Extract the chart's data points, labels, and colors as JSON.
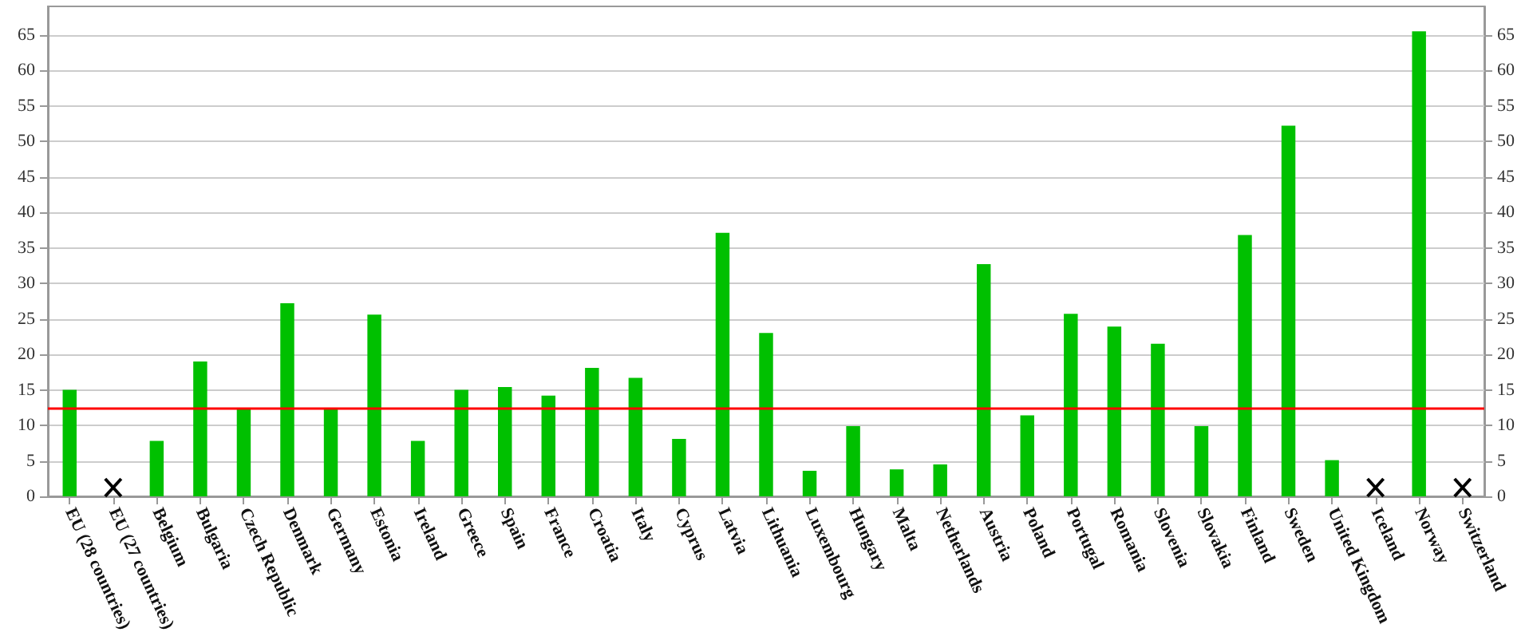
{
  "chart_data": {
    "type": "bar",
    "categories": [
      "EU (28 countries)",
      "EU (27 countries)",
      "Belgium",
      "Bulgaria",
      "Czech Republic",
      "Denmark",
      "Germany",
      "Estonia",
      "Ireland",
      "Greece",
      "Spain",
      "France",
      "Croatia",
      "Italy",
      "Cyprus",
      "Latvia",
      "Lithuania",
      "Luxembourg",
      "Hungary",
      "Malta",
      "Netherlands",
      "Austria",
      "Poland",
      "Portugal",
      "Romania",
      "Slovenia",
      "Slovakia",
      "Finland",
      "Sweden",
      "United Kingdom",
      "Iceland",
      "Norway",
      "Switzerland"
    ],
    "values": [
      15.0,
      null,
      7.8,
      19.0,
      12.4,
      27.2,
      12.4,
      25.6,
      7.8,
      15.0,
      15.4,
      14.2,
      18.1,
      16.7,
      8.1,
      37.1,
      23.0,
      3.6,
      9.9,
      3.8,
      4.5,
      32.7,
      11.4,
      25.7,
      23.9,
      21.5,
      9.9,
      36.8,
      52.2,
      5.1,
      null,
      65.5,
      null
    ],
    "color": "#00c000",
    "ylim": [
      0,
      69
    ],
    "yticks": [
      0,
      5,
      10,
      15,
      20,
      25,
      30,
      35,
      40,
      45,
      50,
      55,
      60,
      65
    ],
    "y2lim": [
      0,
      69
    ],
    "y2ticks": [
      0,
      5,
      10,
      15,
      20,
      25,
      30,
      35,
      40,
      45,
      50,
      55,
      60,
      65
    ],
    "ref_lines": [
      {
        "axis": "y",
        "value": 12.4,
        "color": "#ff0000"
      }
    ],
    "grid": "y"
  }
}
